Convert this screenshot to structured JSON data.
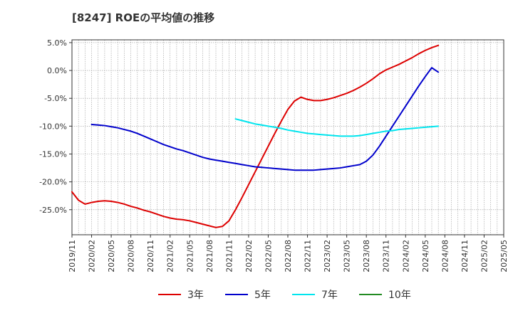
{
  "chart_data": {
    "type": "line",
    "title": "[8247]  ROEの平均値の推移",
    "xlabel": "",
    "ylabel": "",
    "ylim": [
      -29.5,
      5.5
    ],
    "y_ticks": [
      5,
      0,
      -5,
      -10,
      -15,
      -20,
      -25
    ],
    "y_tick_labels": [
      "5.0%",
      "0.0%",
      "-5.0%",
      "-10.0%",
      "-15.0%",
      "-20.0%",
      "-25.0%"
    ],
    "x_tick_labels": [
      "2019/11",
      "2020/02",
      "2020/05",
      "2020/08",
      "2020/11",
      "2021/02",
      "2021/05",
      "2021/08",
      "2021/11",
      "2022/02",
      "2022/05",
      "2022/08",
      "2022/11",
      "2023/02",
      "2023/05",
      "2023/08",
      "2023/11",
      "2024/02",
      "2024/05",
      "2024/08",
      "2024/11",
      "2025/02",
      "2025/05"
    ],
    "grid": true,
    "legend_position": "bottom",
    "series": [
      {
        "name": "3年",
        "color": "#dd0000",
        "points": [
          [
            0,
            -21.8
          ],
          [
            1,
            -23.3
          ],
          [
            2,
            -24.0
          ],
          [
            3,
            -23.7
          ],
          [
            4,
            -23.5
          ],
          [
            5,
            -23.4
          ],
          [
            6,
            -23.5
          ],
          [
            7,
            -23.7
          ],
          [
            8,
            -24.0
          ],
          [
            9,
            -24.4
          ],
          [
            10,
            -24.7
          ],
          [
            11,
            -25.1
          ],
          [
            12,
            -25.4
          ],
          [
            13,
            -25.8
          ],
          [
            14,
            -26.2
          ],
          [
            15,
            -26.5
          ],
          [
            16,
            -26.7
          ],
          [
            17,
            -26.8
          ],
          [
            18,
            -27.0
          ],
          [
            19,
            -27.3
          ],
          [
            20,
            -27.6
          ],
          [
            21,
            -27.9
          ],
          [
            22,
            -28.2
          ],
          [
            23,
            -28.0
          ],
          [
            24,
            -27.0
          ],
          [
            25,
            -25.0
          ],
          [
            26,
            -22.8
          ],
          [
            27,
            -20.5
          ],
          [
            28,
            -18.2
          ],
          [
            29,
            -15.9
          ],
          [
            30,
            -13.6
          ],
          [
            31,
            -11.3
          ],
          [
            32,
            -9.1
          ],
          [
            33,
            -7.0
          ],
          [
            34,
            -5.5
          ],
          [
            35,
            -4.8
          ],
          [
            36,
            -5.2
          ],
          [
            37,
            -5.4
          ],
          [
            38,
            -5.4
          ],
          [
            39,
            -5.2
          ],
          [
            40,
            -4.9
          ],
          [
            41,
            -4.5
          ],
          [
            42,
            -4.1
          ],
          [
            43,
            -3.6
          ],
          [
            44,
            -3.0
          ],
          [
            45,
            -2.3
          ],
          [
            46,
            -1.5
          ],
          [
            47,
            -0.6
          ],
          [
            48,
            0.1
          ],
          [
            49,
            0.6
          ],
          [
            50,
            1.1
          ],
          [
            51,
            1.7
          ],
          [
            52,
            2.3
          ],
          [
            53,
            3.0
          ],
          [
            54,
            3.6
          ],
          [
            55,
            4.1
          ],
          [
            56,
            4.5
          ]
        ]
      },
      {
        "name": "5年",
        "color": "#0000cc",
        "points": [
          [
            3,
            -9.7
          ],
          [
            4,
            -9.8
          ],
          [
            5,
            -9.9
          ],
          [
            6,
            -10.1
          ],
          [
            7,
            -10.3
          ],
          [
            8,
            -10.6
          ],
          [
            9,
            -10.9
          ],
          [
            10,
            -11.3
          ],
          [
            11,
            -11.8
          ],
          [
            12,
            -12.3
          ],
          [
            13,
            -12.8
          ],
          [
            14,
            -13.3
          ],
          [
            15,
            -13.7
          ],
          [
            16,
            -14.1
          ],
          [
            17,
            -14.4
          ],
          [
            18,
            -14.8
          ],
          [
            19,
            -15.2
          ],
          [
            20,
            -15.6
          ],
          [
            21,
            -15.9
          ],
          [
            22,
            -16.1
          ],
          [
            23,
            -16.3
          ],
          [
            24,
            -16.5
          ],
          [
            25,
            -16.7
          ],
          [
            26,
            -16.9
          ],
          [
            27,
            -17.1
          ],
          [
            28,
            -17.3
          ],
          [
            29,
            -17.4
          ],
          [
            30,
            -17.5
          ],
          [
            31,
            -17.6
          ],
          [
            32,
            -17.7
          ],
          [
            33,
            -17.8
          ],
          [
            34,
            -17.9
          ],
          [
            35,
            -17.9
          ],
          [
            36,
            -17.9
          ],
          [
            37,
            -17.9
          ],
          [
            38,
            -17.8
          ],
          [
            39,
            -17.7
          ],
          [
            40,
            -17.6
          ],
          [
            41,
            -17.5
          ],
          [
            42,
            -17.3
          ],
          [
            43,
            -17.1
          ],
          [
            44,
            -16.9
          ],
          [
            45,
            -16.3
          ],
          [
            46,
            -15.2
          ],
          [
            47,
            -13.6
          ],
          [
            48,
            -11.8
          ],
          [
            49,
            -10.0
          ],
          [
            50,
            -8.2
          ],
          [
            51,
            -6.4
          ],
          [
            52,
            -4.6
          ],
          [
            53,
            -2.8
          ],
          [
            54,
            -1.1
          ],
          [
            55,
            0.5
          ],
          [
            56,
            -0.3
          ]
        ]
      },
      {
        "name": "7年",
        "color": "#00e5ee",
        "points": [
          [
            25,
            -8.7
          ],
          [
            26,
            -9.0
          ],
          [
            27,
            -9.3
          ],
          [
            28,
            -9.6
          ],
          [
            29,
            -9.8
          ],
          [
            30,
            -10.0
          ],
          [
            31,
            -10.2
          ],
          [
            32,
            -10.4
          ],
          [
            33,
            -10.7
          ],
          [
            34,
            -10.9
          ],
          [
            35,
            -11.1
          ],
          [
            36,
            -11.3
          ],
          [
            37,
            -11.4
          ],
          [
            38,
            -11.5
          ],
          [
            39,
            -11.6
          ],
          [
            40,
            -11.7
          ],
          [
            41,
            -11.8
          ],
          [
            42,
            -11.8
          ],
          [
            43,
            -11.8
          ],
          [
            44,
            -11.7
          ],
          [
            45,
            -11.5
          ],
          [
            46,
            -11.3
          ],
          [
            47,
            -11.1
          ],
          [
            48,
            -10.9
          ],
          [
            49,
            -10.8
          ],
          [
            50,
            -10.6
          ],
          [
            51,
            -10.5
          ],
          [
            52,
            -10.4
          ],
          [
            53,
            -10.3
          ],
          [
            54,
            -10.2
          ],
          [
            55,
            -10.1
          ],
          [
            56,
            -10.0
          ]
        ]
      },
      {
        "name": "10年",
        "color": "#228b22",
        "points": []
      }
    ]
  }
}
